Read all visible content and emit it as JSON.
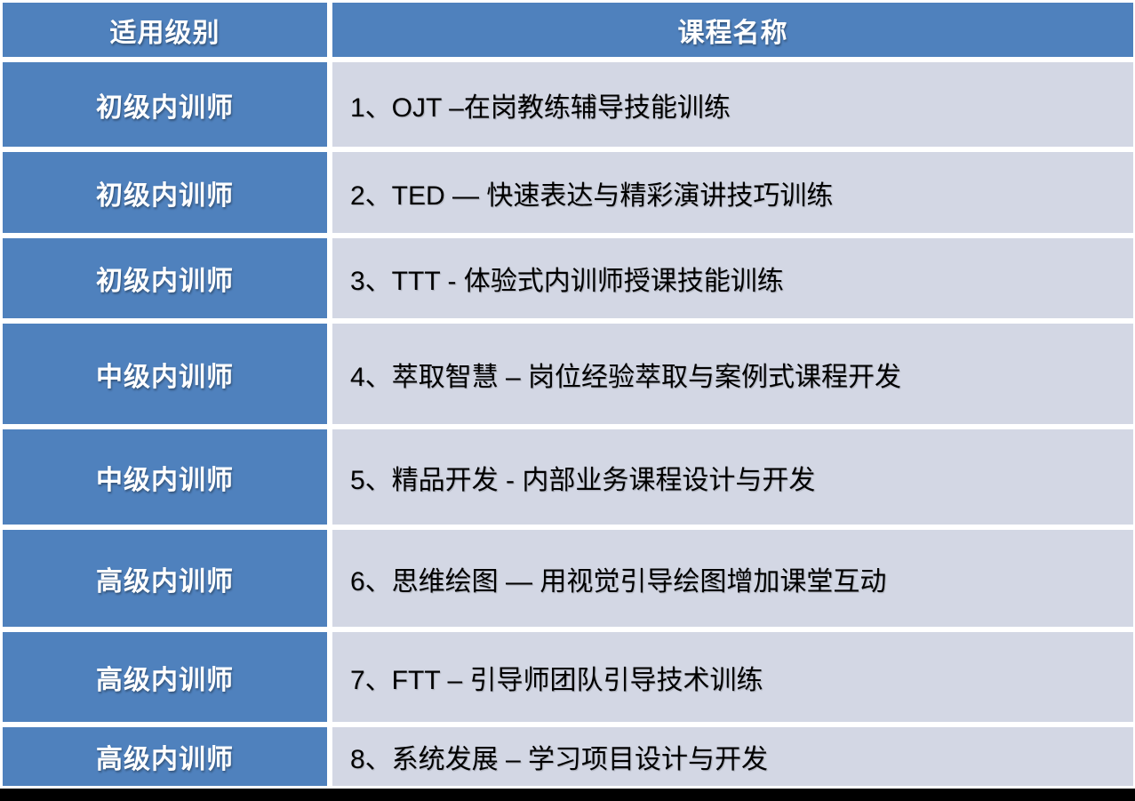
{
  "header": {
    "level_label": "适用级别",
    "course_label": "课程名称"
  },
  "rows": [
    {
      "level": "初级内训师",
      "course": "1、OJT –在岗教练辅导技能训练"
    },
    {
      "level": "初级内训师",
      "course": "2、TED — 快速表达与精彩演讲技巧训练"
    },
    {
      "level": "初级内训师",
      "course": "3、TTT - 体验式内训师授课技能训练"
    },
    {
      "level": "中级内训师",
      "course": "4、萃取智慧 – 岗位经验萃取与案例式课程开发"
    },
    {
      "level": "中级内训师",
      "course": "5、精品开发 - 内部业务课程设计与开发"
    },
    {
      "level": "高级内训师",
      "course": "6、思维绘图 — 用视觉引导绘图增加课堂互动"
    },
    {
      "level": "高级内训师",
      "course": "7、FTT – 引导师团队引导技术训练"
    },
    {
      "level": "高级内训师",
      "course": "8、系统发展 – 学习项目设计与开发"
    }
  ],
  "colors": {
    "header_bg": "#4f81bd",
    "level_cell_bg": "#4f81bd",
    "course_cell_bg": "#d3d7e4",
    "header_text": "#ffffff",
    "course_text": "#000000",
    "grid_line": "#ffffff",
    "bottom_bar": "#000000"
  }
}
